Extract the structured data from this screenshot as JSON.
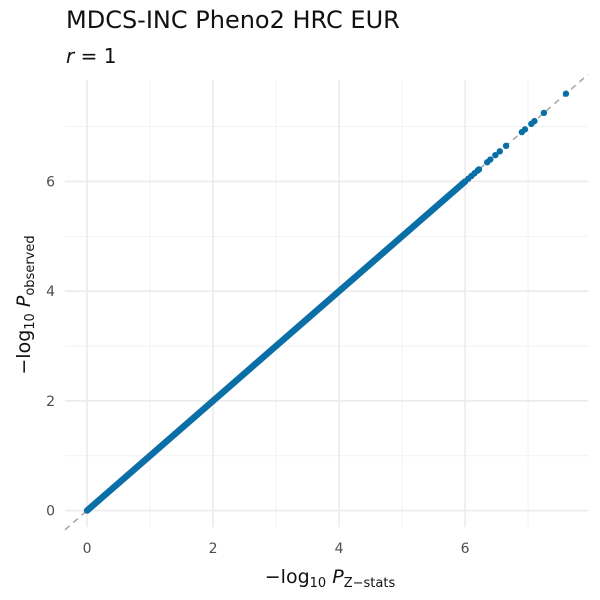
{
  "chart_data": {
    "type": "scatter",
    "title": "MDCS-INC Pheno2 HRC EUR",
    "subtitle": {
      "symbol": "r",
      "operator": "=",
      "value": "1"
    },
    "xlabel": {
      "prefix": "−log",
      "subscript": "10",
      "var": "P",
      "var_subscript": "Z−stats"
    },
    "ylabel": {
      "prefix": "−log",
      "subscript": "10",
      "var": "P",
      "var_subscript": "observed"
    },
    "xlim": [
      -0.35,
      7.95
    ],
    "ylim": [
      -0.3,
      7.85
    ],
    "x_ticks": [
      0,
      2,
      4,
      6
    ],
    "y_ticks": [
      0,
      2,
      4,
      6
    ],
    "x_minor": [
      1,
      3,
      5,
      7
    ],
    "y_minor": [
      1,
      3,
      5,
      7
    ],
    "grid": true,
    "reference_line": {
      "style": "dashed",
      "slope": 1,
      "intercept": 0,
      "color": "#aaaaaa"
    },
    "point_color": "#0a6fa6",
    "dense_range": [
      0,
      6.0
    ],
    "series": [
      {
        "x": [
          6.05,
          6.1,
          6.15,
          6.2,
          6.22,
          6.35,
          6.4,
          6.48,
          6.55,
          6.65,
          6.9,
          6.95,
          7.05,
          7.1,
          7.25,
          7.6
        ],
        "y": [
          6.05,
          6.1,
          6.15,
          6.2,
          6.22,
          6.35,
          6.4,
          6.48,
          6.55,
          6.65,
          6.9,
          6.95,
          7.05,
          7.1,
          7.25,
          7.6
        ]
      }
    ]
  }
}
